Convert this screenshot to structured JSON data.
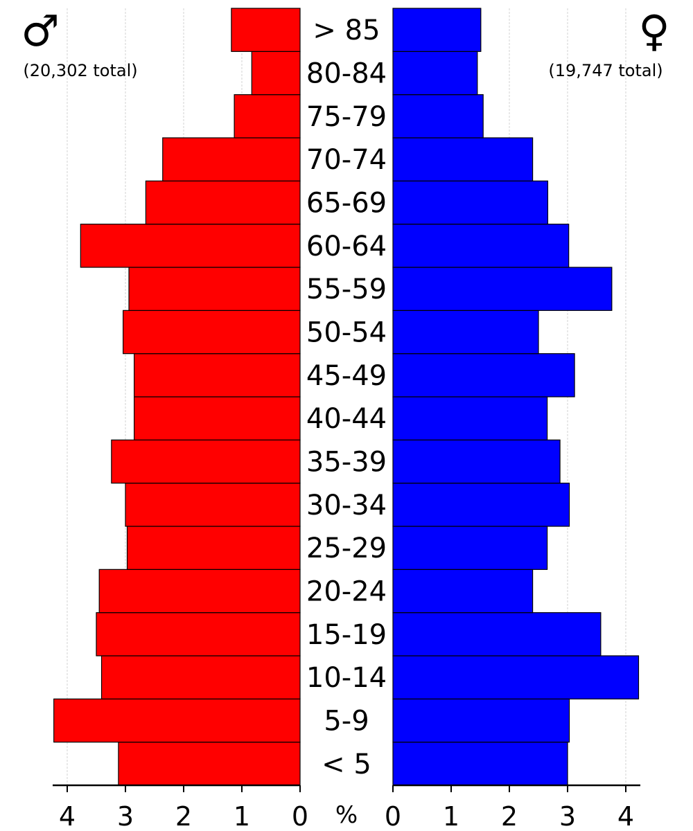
{
  "chart_data": {
    "type": "bar",
    "orientation": "horizontal",
    "subtype": "population-pyramid",
    "unit_label": "%",
    "categories": [
      "< 5",
      "5-9",
      "10-14",
      "15-19",
      "20-24",
      "25-29",
      "30-34",
      "35-39",
      "40-44",
      "45-49",
      "50-54",
      "55-59",
      "60-64",
      "65-69",
      "70-74",
      "75-79",
      "80-84",
      "> 85"
    ],
    "series": [
      {
        "name": "male",
        "symbol": "♂",
        "total_label": "(20,302 total)",
        "color": "#ff0000",
        "side": "left",
        "values": [
          3.12,
          4.23,
          3.41,
          3.5,
          3.45,
          2.97,
          3.0,
          3.24,
          2.85,
          2.85,
          3.04,
          2.94,
          3.77,
          2.65,
          2.36,
          1.13,
          0.83,
          1.18
        ]
      },
      {
        "name": "female",
        "symbol": "♀",
        "total_label": "(19,747 total)",
        "color": "#0000ff",
        "side": "right",
        "values": [
          3.0,
          3.03,
          4.22,
          3.57,
          2.4,
          2.65,
          3.03,
          2.87,
          2.65,
          3.12,
          2.5,
          3.76,
          3.02,
          2.66,
          2.4,
          1.55,
          1.45,
          1.51
        ]
      }
    ],
    "xlim": [
      0,
      4.25
    ],
    "x_ticks": [
      0,
      1,
      2,
      3,
      4
    ],
    "grid": true
  }
}
